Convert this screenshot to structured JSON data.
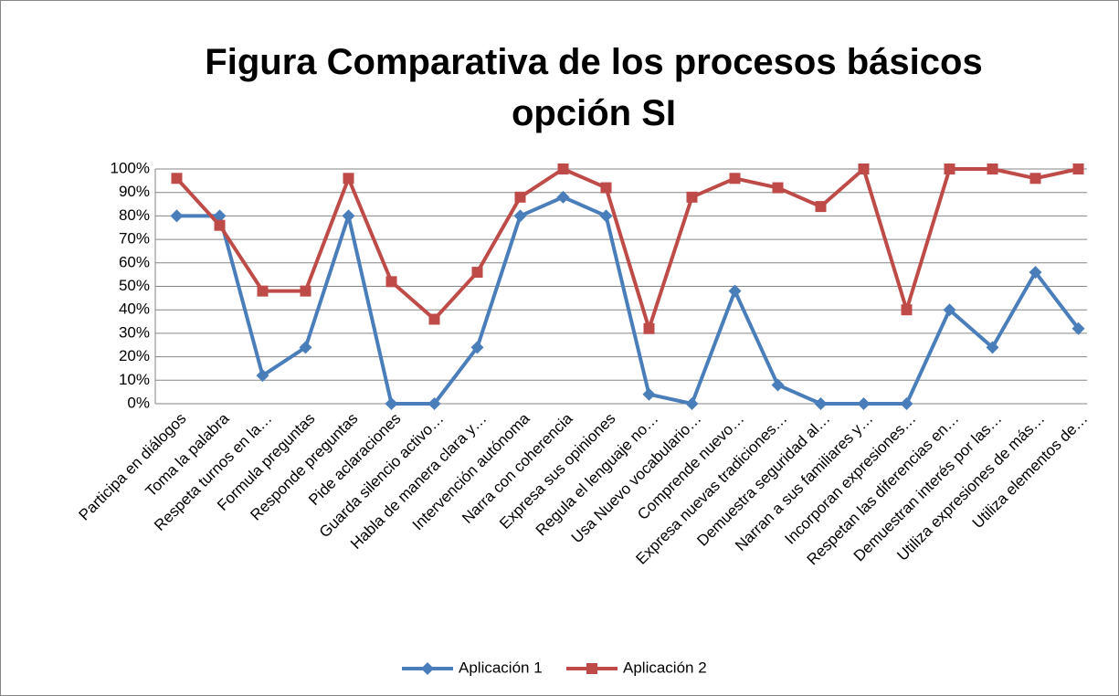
{
  "chart_data": {
    "type": "line",
    "title": "Figura Comparativa de los procesos básicos opción SI",
    "categories": [
      "Participa en diálogos",
      "Toma la palabra",
      "Respeta turnos en la…",
      "Formula preguntas",
      "Responde preguntas",
      "Pide aclaraciones",
      "Guarda silencio activo…",
      "Habla de manera clara y…",
      "Intervención autónoma",
      "Narra con coherencia",
      "Expresa sus opiniones",
      "Regula el lenguaje no…",
      "Usa Nuevo vocabulario…",
      "Comprende nuevo…",
      "Expresa nuevas tradiciones…",
      "Demuestra seguridad al…",
      "Narran a sus familiares y…",
      "Incorporan expresiones…",
      "Respetan las diferencias en…",
      "Demuestran interés por las…",
      "Utiliza expresiones de más…",
      "Utiliza elementos de…"
    ],
    "series": [
      {
        "name": "Aplicación 1",
        "color": "#4a7ebb",
        "marker": "diamond",
        "values": [
          80,
          80,
          12,
          24,
          80,
          0,
          0,
          24,
          80,
          88,
          80,
          4,
          0,
          48,
          8,
          0,
          0,
          0,
          40,
          24,
          56,
          32
        ]
      },
      {
        "name": "Aplicación 2",
        "color": "#be4b48",
        "marker": "square",
        "values": [
          96,
          76,
          48,
          48,
          96,
          52,
          36,
          56,
          88,
          100,
          92,
          32,
          88,
          96,
          92,
          84,
          100,
          40,
          100,
          100,
          96,
          100
        ]
      }
    ],
    "ylim": [
      0,
      100
    ],
    "yticks": [
      {
        "value": 0,
        "label": "0%"
      },
      {
        "value": 10,
        "label": "10%"
      },
      {
        "value": 20,
        "label": "20%"
      },
      {
        "value": 30,
        "label": "30%"
      },
      {
        "value": 40,
        "label": "40%"
      },
      {
        "value": 50,
        "label": "50%"
      },
      {
        "value": 60,
        "label": "60%"
      },
      {
        "value": 70,
        "label": "70%"
      },
      {
        "value": 80,
        "label": "80%"
      },
      {
        "value": 90,
        "label": "90%"
      },
      {
        "value": 100,
        "label": "100%"
      }
    ],
    "grid": true,
    "legend": "bottom"
  }
}
